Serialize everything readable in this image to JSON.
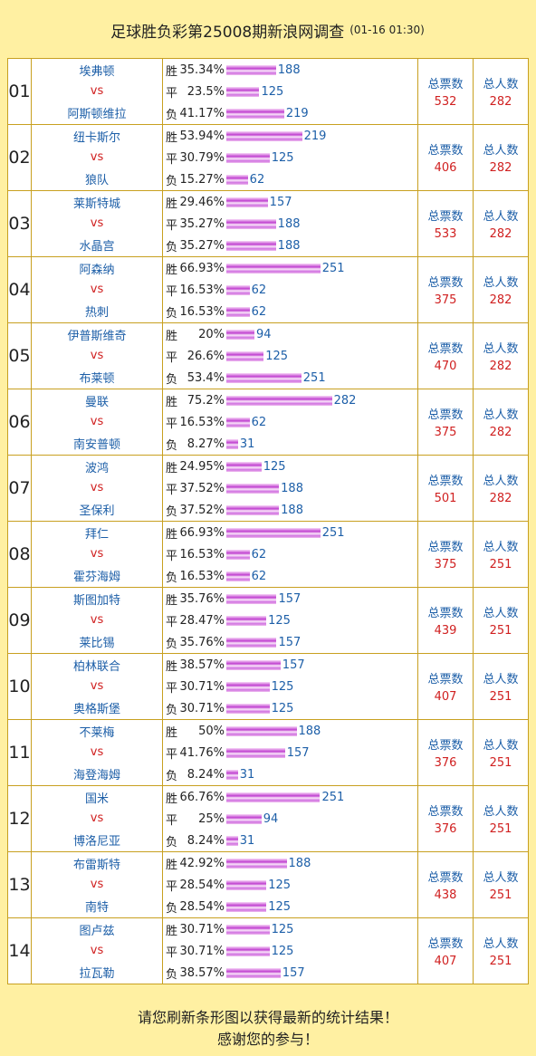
{
  "header": {
    "title": "足球胜负彩第25008期新浪网调查",
    "date": "(01-16 01:30)"
  },
  "rows": [
    {
      "num": "01",
      "home": "埃弗顿",
      "vs": "vs",
      "away": "阿斯顿维拉",
      "options": [
        {
          "label": "胜",
          "pct": {
            "value": 35.34,
            "label": "35.34%"
          },
          "count": 188
        },
        {
          "label": "平",
          "pct": {
            "value": 23.5,
            "label": "23.5%"
          },
          "count": 125
        },
        {
          "label": "负",
          "pct": {
            "value": 41.17,
            "label": "41.17%"
          },
          "count": 219
        }
      ],
      "votes_label": "总票数",
      "votes": 532,
      "people_label": "总人数",
      "people": 282
    },
    {
      "num": "02",
      "home": "纽卡斯尔",
      "vs": "vs",
      "away": "狼队",
      "options": [
        {
          "label": "胜",
          "pct": {
            "value": 53.94,
            "label": "53.94%"
          },
          "count": 219
        },
        {
          "label": "平",
          "pct": {
            "value": 30.79,
            "label": "30.79%"
          },
          "count": 125
        },
        {
          "label": "负",
          "pct": {
            "value": 15.27,
            "label": "15.27%"
          },
          "count": 62
        }
      ],
      "votes_label": "总票数",
      "votes": 406,
      "people_label": "总人数",
      "people": 282
    },
    {
      "num": "03",
      "home": "莱斯特城",
      "vs": "vs",
      "away": "水晶宫",
      "options": [
        {
          "label": "胜",
          "pct": {
            "value": 29.46,
            "label": "29.46%"
          },
          "count": 157
        },
        {
          "label": "平",
          "pct": {
            "value": 35.27,
            "label": "35.27%"
          },
          "count": 188
        },
        {
          "label": "负",
          "pct": {
            "value": 35.27,
            "label": "35.27%"
          },
          "count": 188
        }
      ],
      "votes_label": "总票数",
      "votes": 533,
      "people_label": "总人数",
      "people": 282
    },
    {
      "num": "04",
      "home": "阿森纳",
      "vs": "vs",
      "away": "热刺",
      "options": [
        {
          "label": "胜",
          "pct": {
            "value": 66.93,
            "label": "66.93%"
          },
          "count": 251
        },
        {
          "label": "平",
          "pct": {
            "value": 16.53,
            "label": "16.53%"
          },
          "count": 62
        },
        {
          "label": "负",
          "pct": {
            "value": 16.53,
            "label": "16.53%"
          },
          "count": 62
        }
      ],
      "votes_label": "总票数",
      "votes": 375,
      "people_label": "总人数",
      "people": 282
    },
    {
      "num": "05",
      "home": "伊普斯维奇",
      "vs": "vs",
      "away": "布莱顿",
      "options": [
        {
          "label": "胜",
          "pct": {
            "value": 20,
            "label": "20%"
          },
          "count": 94
        },
        {
          "label": "平",
          "pct": {
            "value": 26.6,
            "label": "26.6%"
          },
          "count": 125
        },
        {
          "label": "负",
          "pct": {
            "value": 53.4,
            "label": "53.4%"
          },
          "count": 251
        }
      ],
      "votes_label": "总票数",
      "votes": 470,
      "people_label": "总人数",
      "people": 282
    },
    {
      "num": "06",
      "home": "曼联",
      "vs": "vs",
      "away": "南安普顿",
      "options": [
        {
          "label": "胜",
          "pct": {
            "value": 75.2,
            "label": "75.2%"
          },
          "count": 282
        },
        {
          "label": "平",
          "pct": {
            "value": 16.53,
            "label": "16.53%"
          },
          "count": 62
        },
        {
          "label": "负",
          "pct": {
            "value": 8.27,
            "label": "8.27%"
          },
          "count": 31
        }
      ],
      "votes_label": "总票数",
      "votes": 375,
      "people_label": "总人数",
      "people": 282
    },
    {
      "num": "07",
      "home": "波鸿",
      "vs": "vs",
      "away": "圣保利",
      "options": [
        {
          "label": "胜",
          "pct": {
            "value": 24.95,
            "label": "24.95%"
          },
          "count": 125
        },
        {
          "label": "平",
          "pct": {
            "value": 37.52,
            "label": "37.52%"
          },
          "count": 188
        },
        {
          "label": "负",
          "pct": {
            "value": 37.52,
            "label": "37.52%"
          },
          "count": 188
        }
      ],
      "votes_label": "总票数",
      "votes": 501,
      "people_label": "总人数",
      "people": 282
    },
    {
      "num": "08",
      "home": "拜仁",
      "vs": "vs",
      "away": "霍芬海姆",
      "options": [
        {
          "label": "胜",
          "pct": {
            "value": 66.93,
            "label": "66.93%"
          },
          "count": 251
        },
        {
          "label": "平",
          "pct": {
            "value": 16.53,
            "label": "16.53%"
          },
          "count": 62
        },
        {
          "label": "负",
          "pct": {
            "value": 16.53,
            "label": "16.53%"
          },
          "count": 62
        }
      ],
      "votes_label": "总票数",
      "votes": 375,
      "people_label": "总人数",
      "people": 251
    },
    {
      "num": "09",
      "home": "斯图加特",
      "vs": "vs",
      "away": "莱比锡",
      "options": [
        {
          "label": "胜",
          "pct": {
            "value": 35.76,
            "label": "35.76%"
          },
          "count": 157
        },
        {
          "label": "平",
          "pct": {
            "value": 28.47,
            "label": "28.47%"
          },
          "count": 125
        },
        {
          "label": "负",
          "pct": {
            "value": 35.76,
            "label": "35.76%"
          },
          "count": 157
        }
      ],
      "votes_label": "总票数",
      "votes": 439,
      "people_label": "总人数",
      "people": 251
    },
    {
      "num": "10",
      "home": "柏林联合",
      "vs": "vs",
      "away": "奥格斯堡",
      "options": [
        {
          "label": "胜",
          "pct": {
            "value": 38.57,
            "label": "38.57%"
          },
          "count": 157
        },
        {
          "label": "平",
          "pct": {
            "value": 30.71,
            "label": "30.71%"
          },
          "count": 125
        },
        {
          "label": "负",
          "pct": {
            "value": 30.71,
            "label": "30.71%"
          },
          "count": 125
        }
      ],
      "votes_label": "总票数",
      "votes": 407,
      "people_label": "总人数",
      "people": 251
    },
    {
      "num": "11",
      "home": "不莱梅",
      "vs": "vs",
      "away": "海登海姆",
      "options": [
        {
          "label": "胜",
          "pct": {
            "value": 50,
            "label": "50%"
          },
          "count": 188
        },
        {
          "label": "平",
          "pct": {
            "value": 41.76,
            "label": "41.76%"
          },
          "count": 157
        },
        {
          "label": "负",
          "pct": {
            "value": 8.24,
            "label": "8.24%"
          },
          "count": 31
        }
      ],
      "votes_label": "总票数",
      "votes": 376,
      "people_label": "总人数",
      "people": 251
    },
    {
      "num": "12",
      "home": "国米",
      "vs": "vs",
      "away": "博洛尼亚",
      "options": [
        {
          "label": "胜",
          "pct": {
            "value": 66.76,
            "label": "66.76%"
          },
          "count": 251
        },
        {
          "label": "平",
          "pct": {
            "value": 25,
            "label": "25%"
          },
          "count": 94
        },
        {
          "label": "负",
          "pct": {
            "value": 8.24,
            "label": "8.24%"
          },
          "count": 31
        }
      ],
      "votes_label": "总票数",
      "votes": 376,
      "people_label": "总人数",
      "people": 251
    },
    {
      "num": "13",
      "home": "布雷斯特",
      "vs": "vs",
      "away": "南特",
      "options": [
        {
          "label": "胜",
          "pct": {
            "value": 42.92,
            "label": "42.92%"
          },
          "count": 188
        },
        {
          "label": "平",
          "pct": {
            "value": 28.54,
            "label": "28.54%"
          },
          "count": 125
        },
        {
          "label": "负",
          "pct": {
            "value": 28.54,
            "label": "28.54%"
          },
          "count": 125
        }
      ],
      "votes_label": "总票数",
      "votes": 438,
      "people_label": "总人数",
      "people": 251
    },
    {
      "num": "14",
      "home": "图卢兹",
      "vs": "vs",
      "away": "拉瓦勒",
      "options": [
        {
          "label": "胜",
          "pct": {
            "value": 30.71,
            "label": "30.71%"
          },
          "count": 125
        },
        {
          "label": "平",
          "pct": {
            "value": 30.71,
            "label": "30.71%"
          },
          "count": 125
        },
        {
          "label": "负",
          "pct": {
            "value": 38.57,
            "label": "38.57%"
          },
          "count": 157
        }
      ],
      "votes_label": "总票数",
      "votes": 407,
      "people_label": "总人数",
      "people": 251
    }
  ],
  "footer": {
    "line1": "请您刷新条形图以获得最新的统计结果！",
    "line2": "感谢您的参与！"
  }
}
